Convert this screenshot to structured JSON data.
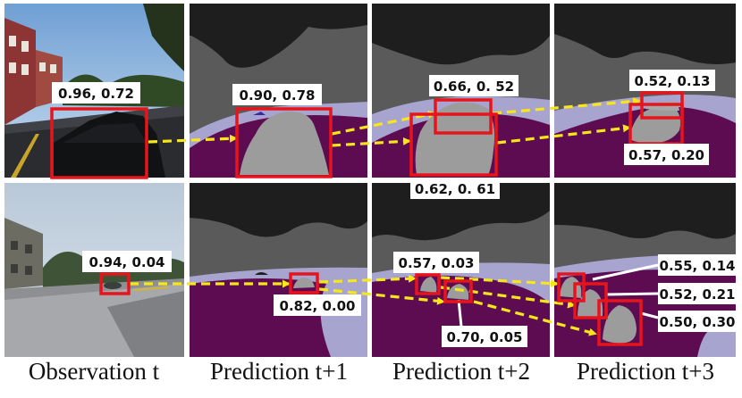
{
  "figure": {
    "captions": [
      "Observation t",
      "Prediction t+1",
      "Prediction t+2",
      "Prediction t+3"
    ],
    "rows": [
      {
        "row_name": "top-row",
        "observation_label": "0.96, 0.72",
        "t1_label": "0.90, 0.78",
        "t2_labels": [
          "0.66, 0. 52",
          "0.62, 0. 61"
        ],
        "t3_labels": [
          "0.52, 0.13",
          "0.57, 0.20"
        ]
      },
      {
        "row_name": "bottom-row",
        "observation_label": "0.94, 0.04",
        "t1_label": "0.82, 0.00",
        "t2_labels": [
          "0.57, 0.03",
          "0.70, 0.05"
        ],
        "t3_labels": [
          "0.55, 0.14",
          "0.52, 0.21",
          "0.50, 0.30"
        ]
      }
    ],
    "colors": {
      "bbox": "#e8141b",
      "arrow": "#f6e61a",
      "sky": "#1e1e1e",
      "background": "#5a5a5a",
      "road": "#5e0c52",
      "sidewalk": "#a8a4d0",
      "vehicle": "#9c9c9c"
    }
  }
}
